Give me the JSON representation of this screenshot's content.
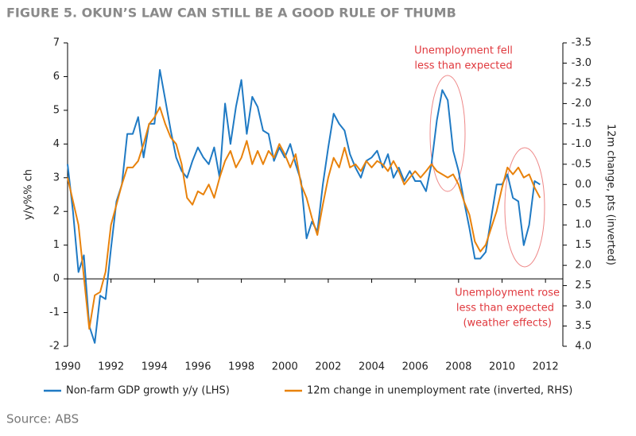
{
  "chart_data": {
    "type": "line",
    "title": "FIGURE 5. OKUN’S LAW CAN STILL BE A GOOD RULE OF THUMB",
    "ylabel": "y/y%% ch",
    "y2label": "12m change, pts (inverted)",
    "source": "Source: ABS",
    "annotations": [
      "Unemployment fell",
      "less than expected",
      "Unemployment rose",
      "less than expected",
      "(weather effects)"
    ],
    "annotation_color": "#e0393e",
    "xlim": [
      1990,
      2012.8
    ],
    "xticks": [
      1990,
      1992,
      1994,
      1996,
      1998,
      2000,
      2002,
      2004,
      2006,
      2008,
      2010,
      2012
    ],
    "ylim": [
      -2,
      7
    ],
    "yticks": [
      -2,
      -1,
      0,
      1,
      2,
      3,
      4,
      5,
      6,
      7
    ],
    "y2lim": [
      4,
      -3.5
    ],
    "y2ticks": [
      -3.5,
      {
        "value": -3,
        "label": "-3.0"
      },
      -2.5,
      {
        "value": -2,
        "label": "-2.0"
      },
      -1.5,
      {
        "value": -1,
        "label": "-1.0"
      },
      -0.5,
      {
        "value": 0,
        "label": "0.0"
      },
      0.5,
      {
        "value": 1,
        "label": "1.0"
      },
      1.5,
      {
        "value": 2,
        "label": "2.0"
      },
      2.5,
      {
        "value": 3,
        "label": "3.0"
      },
      3.5,
      {
        "value": 4,
        "label": "4.0"
      }
    ],
    "series": [
      {
        "name": "Non-farm GDP growth y/y (LHS)",
        "color": "#1f7ac4",
        "axis": "y",
        "x": [
          1990,
          1990.25,
          1990.5,
          1990.75,
          1991,
          1991.25,
          1991.5,
          1991.75,
          1992,
          1992.25,
          1992.5,
          1992.75,
          1993,
          1993.25,
          1993.5,
          1993.75,
          1994,
          1994.25,
          1994.5,
          1994.75,
          1995,
          1995.25,
          1995.5,
          1995.75,
          1996,
          1996.25,
          1996.5,
          1996.75,
          1997,
          1997.25,
          1997.5,
          1997.75,
          1998,
          1998.25,
          1998.5,
          1998.75,
          1999,
          1999.25,
          1999.5,
          1999.75,
          2000,
          2000.25,
          2000.5,
          2000.75,
          2001,
          2001.25,
          2001.5,
          2001.75,
          2002,
          2002.25,
          2002.5,
          2002.75,
          2003,
          2003.25,
          2003.5,
          2003.75,
          2004,
          2004.25,
          2004.5,
          2004.75,
          2005,
          2005.25,
          2005.5,
          2005.75,
          2006,
          2006.25,
          2006.5,
          2006.75,
          2007,
          2007.25,
          2007.5,
          2007.75,
          2008,
          2008.25,
          2008.5,
          2008.75,
          2009,
          2009.25,
          2009.5,
          2009.75,
          2010,
          2010.25,
          2010.5,
          2010.75,
          2011,
          2011.25,
          2011.5,
          2011.75
        ],
        "values": [
          3.4,
          2.0,
          0.2,
          0.7,
          -1.4,
          -1.9,
          -0.5,
          -0.6,
          0.9,
          2.3,
          2.8,
          4.3,
          4.3,
          4.8,
          3.6,
          4.6,
          4.6,
          6.2,
          5.3,
          4.4,
          3.6,
          3.2,
          3.0,
          3.5,
          3.9,
          3.6,
          3.4,
          3.9,
          3.0,
          5.2,
          4.0,
          5.1,
          5.9,
          4.3,
          5.4,
          5.1,
          4.4,
          4.3,
          3.5,
          3.9,
          3.6,
          4.0,
          3.4,
          2.9,
          1.2,
          1.7,
          1.4,
          2.8,
          3.9,
          4.9,
          4.6,
          4.4,
          3.7,
          3.3,
          3.0,
          3.5,
          3.6,
          3.8,
          3.3,
          3.7,
          3.0,
          3.3,
          2.9,
          3.2,
          2.9,
          2.9,
          2.6,
          3.4,
          4.7,
          5.6,
          5.3,
          3.8,
          3.2,
          2.3,
          1.5,
          0.6,
          0.6,
          0.8,
          1.8,
          2.8,
          2.8,
          3.1,
          2.4,
          2.3,
          1.0,
          1.6,
          2.9,
          2.8
        ]
      },
      {
        "name": "12m change in unemployment rate (inverted, RHS)",
        "color": "#e8820c",
        "axis": "y2",
        "x": [
          1990,
          1990.5,
          1991,
          1991.25,
          1991.5,
          1991.75,
          1992,
          1992.25,
          1992.5,
          1992.75,
          1993,
          1993.25,
          1993.5,
          1993.75,
          1994,
          1994.25,
          1994.5,
          1994.75,
          1995,
          1995.25,
          1995.5,
          1995.75,
          1996,
          1996.25,
          1996.5,
          1996.75,
          1997,
          1997.25,
          1997.5,
          1997.75,
          1998,
          1998.25,
          1998.5,
          1998.75,
          1999,
          1999.25,
          1999.5,
          1999.75,
          2000,
          2000.25,
          2000.5,
          2000.75,
          2001,
          2001.25,
          2001.5,
          2001.75,
          2002,
          2002.25,
          2002.5,
          2002.75,
          2003,
          2003.25,
          2003.5,
          2003.75,
          2004,
          2004.25,
          2004.5,
          2004.75,
          2005,
          2005.25,
          2005.5,
          2005.75,
          2006,
          2006.25,
          2006.5,
          2006.75,
          2007,
          2007.25,
          2007.5,
          2007.75,
          2008,
          2008.25,
          2008.5,
          2008.75,
          2009,
          2009.25,
          2009.5,
          2009.75,
          2010,
          2010.25,
          2010.5,
          2010.75,
          2011,
          2011.25,
          2011.5,
          2011.75
        ],
        "values": [
          -0.17,
          1.0,
          3.57,
          2.74,
          2.66,
          2.16,
          1.0,
          0.5,
          0,
          -0.42,
          -0.42,
          -0.58,
          -1.0,
          -1.49,
          -1.66,
          -1.91,
          -1.49,
          -1.16,
          -1.0,
          -0.5,
          0.33,
          0.5,
          0.17,
          0.25,
          0,
          0.33,
          -0.17,
          -0.58,
          -0.83,
          -0.42,
          -0.66,
          -1.08,
          -0.5,
          -0.83,
          -0.5,
          -0.83,
          -0.66,
          -1.0,
          -0.75,
          -0.42,
          -0.75,
          0,
          0.33,
          0.83,
          1.25,
          0.5,
          -0.17,
          -0.66,
          -0.42,
          -0.91,
          -0.42,
          -0.5,
          -0.33,
          -0.58,
          -0.42,
          -0.58,
          -0.5,
          -0.33,
          -0.58,
          -0.33,
          0,
          -0.17,
          -0.33,
          -0.17,
          -0.33,
          -0.5,
          -0.33,
          -0.25,
          -0.17,
          -0.25,
          0,
          0.42,
          0.75,
          1.41,
          1.66,
          1.49,
          1.08,
          0.66,
          0.08,
          -0.42,
          -0.25,
          -0.42,
          -0.17,
          -0.25,
          0.08,
          0.33
        ]
      }
    ]
  }
}
